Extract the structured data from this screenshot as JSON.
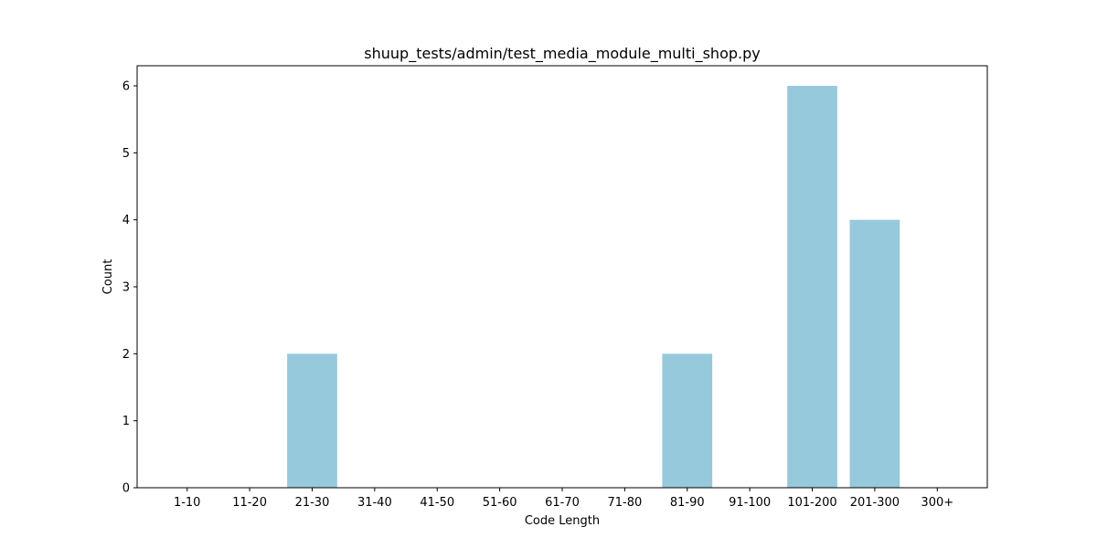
{
  "chart_data": {
    "type": "bar",
    "title": "shuup_tests/admin/test_media_module_multi_shop.py",
    "xlabel": "Code Length",
    "ylabel": "Count",
    "categories": [
      "1-10",
      "11-20",
      "21-30",
      "31-40",
      "41-50",
      "51-60",
      "61-70",
      "71-80",
      "81-90",
      "91-100",
      "101-200",
      "201-300",
      "300+"
    ],
    "values": [
      0,
      0,
      2,
      0,
      0,
      0,
      0,
      0,
      2,
      0,
      6,
      4,
      0
    ],
    "yticks": [
      0,
      1,
      2,
      3,
      4,
      5,
      6
    ],
    "ylim": [
      0,
      6.3
    ],
    "bar_color": "#96c9dc",
    "grid": false,
    "legend": "none"
  }
}
